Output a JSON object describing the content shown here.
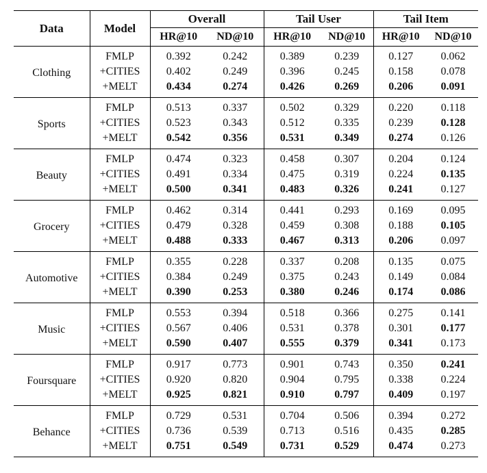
{
  "header": {
    "data_label": "Data",
    "model_label": "Model",
    "groups": [
      "Overall",
      "Tail User",
      "Tail Item"
    ],
    "metrics": [
      "HR@10",
      "ND@10",
      "HR@10",
      "ND@10",
      "HR@10",
      "ND@10"
    ]
  },
  "datasets": [
    {
      "name": "Clothing",
      "rows": [
        {
          "model": "FMLP",
          "values": [
            "0.392",
            "0.242",
            "0.389",
            "0.239",
            "0.127",
            "0.062"
          ],
          "bold": [
            false,
            false,
            false,
            false,
            false,
            false
          ]
        },
        {
          "model": "+CITIES",
          "values": [
            "0.402",
            "0.249",
            "0.396",
            "0.245",
            "0.158",
            "0.078"
          ],
          "bold": [
            false,
            false,
            false,
            false,
            false,
            false
          ]
        },
        {
          "model": "+MELT",
          "values": [
            "0.434",
            "0.274",
            "0.426",
            "0.269",
            "0.206",
            "0.091"
          ],
          "bold": [
            true,
            true,
            true,
            true,
            true,
            true
          ]
        }
      ]
    },
    {
      "name": "Sports",
      "rows": [
        {
          "model": "FMLP",
          "values": [
            "0.513",
            "0.337",
            "0.502",
            "0.329",
            "0.220",
            "0.118"
          ],
          "bold": [
            false,
            false,
            false,
            false,
            false,
            false
          ]
        },
        {
          "model": "+CITIES",
          "values": [
            "0.523",
            "0.343",
            "0.512",
            "0.335",
            "0.239",
            "0.128"
          ],
          "bold": [
            false,
            false,
            false,
            false,
            false,
            true
          ]
        },
        {
          "model": "+MELT",
          "values": [
            "0.542",
            "0.356",
            "0.531",
            "0.349",
            "0.274",
            "0.126"
          ],
          "bold": [
            true,
            true,
            true,
            true,
            true,
            false
          ]
        }
      ]
    },
    {
      "name": "Beauty",
      "rows": [
        {
          "model": "FMLP",
          "values": [
            "0.474",
            "0.323",
            "0.458",
            "0.307",
            "0.204",
            "0.124"
          ],
          "bold": [
            false,
            false,
            false,
            false,
            false,
            false
          ]
        },
        {
          "model": "+CITIES",
          "values": [
            "0.491",
            "0.334",
            "0.475",
            "0.319",
            "0.224",
            "0.135"
          ],
          "bold": [
            false,
            false,
            false,
            false,
            false,
            true
          ]
        },
        {
          "model": "+MELT",
          "values": [
            "0.500",
            "0.341",
            "0.483",
            "0.326",
            "0.241",
            "0.127"
          ],
          "bold": [
            true,
            true,
            true,
            true,
            true,
            false
          ]
        }
      ]
    },
    {
      "name": "Grocery",
      "rows": [
        {
          "model": "FMLP",
          "values": [
            "0.462",
            "0.314",
            "0.441",
            "0.293",
            "0.169",
            "0.095"
          ],
          "bold": [
            false,
            false,
            false,
            false,
            false,
            false
          ]
        },
        {
          "model": "+CITIES",
          "values": [
            "0.479",
            "0.328",
            "0.459",
            "0.308",
            "0.188",
            "0.105"
          ],
          "bold": [
            false,
            false,
            false,
            false,
            false,
            true
          ]
        },
        {
          "model": "+MELT",
          "values": [
            "0.488",
            "0.333",
            "0.467",
            "0.313",
            "0.206",
            "0.097"
          ],
          "bold": [
            true,
            true,
            true,
            true,
            true,
            false
          ]
        }
      ]
    },
    {
      "name": "Automotive",
      "rows": [
        {
          "model": "FMLP",
          "values": [
            "0.355",
            "0.228",
            "0.337",
            "0.208",
            "0.135",
            "0.075"
          ],
          "bold": [
            false,
            false,
            false,
            false,
            false,
            false
          ]
        },
        {
          "model": "+CITIES",
          "values": [
            "0.384",
            "0.249",
            "0.375",
            "0.243",
            "0.149",
            "0.084"
          ],
          "bold": [
            false,
            false,
            false,
            false,
            false,
            false
          ]
        },
        {
          "model": "+MELT",
          "values": [
            "0.390",
            "0.253",
            "0.380",
            "0.246",
            "0.174",
            "0.086"
          ],
          "bold": [
            true,
            true,
            true,
            true,
            true,
            true
          ]
        }
      ]
    },
    {
      "name": "Music",
      "rows": [
        {
          "model": "FMLP",
          "values": [
            "0.553",
            "0.394",
            "0.518",
            "0.366",
            "0.275",
            "0.141"
          ],
          "bold": [
            false,
            false,
            false,
            false,
            false,
            false
          ]
        },
        {
          "model": "+CITIES",
          "values": [
            "0.567",
            "0.406",
            "0.531",
            "0.378",
            "0.301",
            "0.177"
          ],
          "bold": [
            false,
            false,
            false,
            false,
            false,
            true
          ]
        },
        {
          "model": "+MELT",
          "values": [
            "0.590",
            "0.407",
            "0.555",
            "0.379",
            "0.341",
            "0.173"
          ],
          "bold": [
            true,
            true,
            true,
            true,
            true,
            false
          ]
        }
      ]
    },
    {
      "name": "Foursquare",
      "rows": [
        {
          "model": "FMLP",
          "values": [
            "0.917",
            "0.773",
            "0.901",
            "0.743",
            "0.350",
            "0.241"
          ],
          "bold": [
            false,
            false,
            false,
            false,
            false,
            true
          ]
        },
        {
          "model": "+CITIES",
          "values": [
            "0.920",
            "0.820",
            "0.904",
            "0.795",
            "0.338",
            "0.224"
          ],
          "bold": [
            false,
            false,
            false,
            false,
            false,
            false
          ]
        },
        {
          "model": "+MELT",
          "values": [
            "0.925",
            "0.821",
            "0.910",
            "0.797",
            "0.409",
            "0.197"
          ],
          "bold": [
            true,
            true,
            true,
            true,
            true,
            false
          ]
        }
      ]
    },
    {
      "name": "Behance",
      "rows": [
        {
          "model": "FMLP",
          "values": [
            "0.729",
            "0.531",
            "0.704",
            "0.506",
            "0.394",
            "0.272"
          ],
          "bold": [
            false,
            false,
            false,
            false,
            false,
            false
          ]
        },
        {
          "model": "+CITIES",
          "values": [
            "0.736",
            "0.539",
            "0.713",
            "0.516",
            "0.435",
            "0.285"
          ],
          "bold": [
            false,
            false,
            false,
            false,
            false,
            true
          ]
        },
        {
          "model": "+MELT",
          "values": [
            "0.751",
            "0.549",
            "0.731",
            "0.529",
            "0.474",
            "0.273"
          ],
          "bold": [
            true,
            true,
            true,
            true,
            true,
            false
          ]
        }
      ]
    }
  ]
}
